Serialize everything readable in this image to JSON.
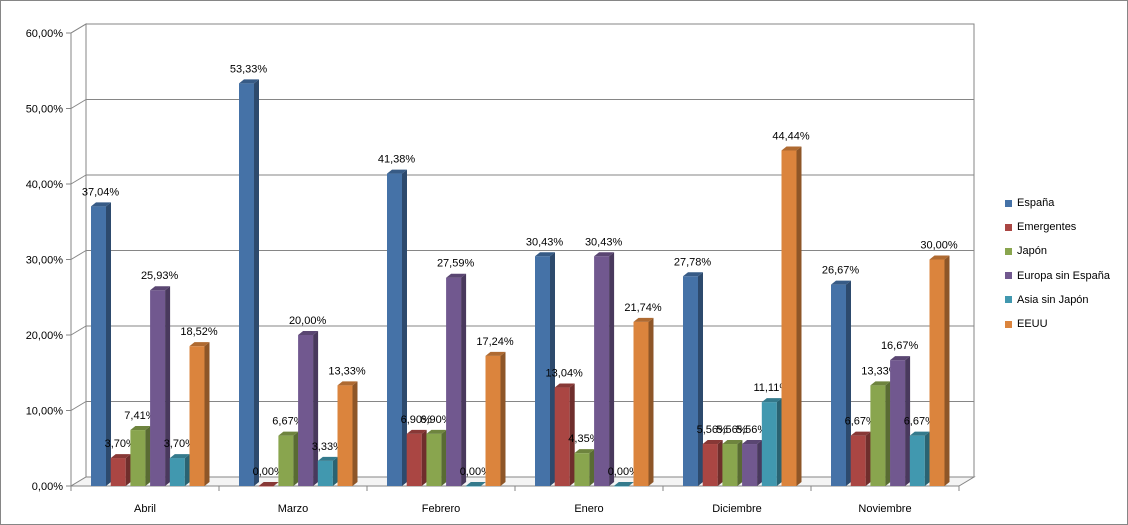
{
  "chart_data": {
    "type": "bar",
    "categories": [
      "Abril",
      "Marzo",
      "Febrero",
      "Enero",
      "Diciembre",
      "Noviembre"
    ],
    "series": [
      {
        "name": "España",
        "color": "#4572A7",
        "values": [
          37.04,
          53.33,
          41.38,
          30.43,
          27.78,
          26.67
        ],
        "labels": [
          "37,04%",
          "53,33%",
          "41,38%",
          "30,43%",
          "27,78%",
          "26,67%"
        ]
      },
      {
        "name": "Emergentes",
        "color": "#AA4643",
        "values": [
          3.7,
          0.0,
          6.9,
          13.04,
          5.56,
          6.67
        ],
        "labels": [
          "3,70%",
          "0,00%",
          "6,90%",
          "13,04%",
          "5,56%",
          "6,67%"
        ]
      },
      {
        "name": "Japón",
        "color": "#89A54E",
        "values": [
          7.41,
          6.67,
          6.9,
          4.35,
          5.56,
          13.33
        ],
        "labels": [
          "7,41%",
          "6,67%",
          "6,90%",
          "4,35%",
          "5,56%",
          "13,33%"
        ]
      },
      {
        "name": "Europa sin España",
        "color": "#71588F",
        "values": [
          25.93,
          20.0,
          27.59,
          30.43,
          5.56,
          16.67
        ],
        "labels": [
          "25,93%",
          "20,00%",
          "27,59%",
          "30,43%",
          "5,56%",
          "16,67%"
        ]
      },
      {
        "name": "Asia sin Japón",
        "color": "#4198AF",
        "values": [
          3.7,
          3.33,
          0.0,
          0.0,
          11.11,
          6.67
        ],
        "labels": [
          "3,70%",
          "3,33%",
          "0,00%",
          "0,00%",
          "11,11%",
          "6,67%"
        ]
      },
      {
        "name": "EEUU",
        "color": "#DB843D",
        "values": [
          18.52,
          13.33,
          17.24,
          21.74,
          44.44,
          30.0
        ],
        "labels": [
          "18,52%",
          "13,33%",
          "17,24%",
          "21,74%",
          "44,44%",
          "30,00%"
        ]
      }
    ],
    "yticks": [
      "0,00%",
      "10,00%",
      "20,00%",
      "30,00%",
      "40,00%",
      "50,00%",
      "60,00%"
    ],
    "ylim": [
      0,
      60
    ],
    "grid": true,
    "legend_position": "right",
    "title": "",
    "xlabel": "",
    "ylabel": ""
  }
}
